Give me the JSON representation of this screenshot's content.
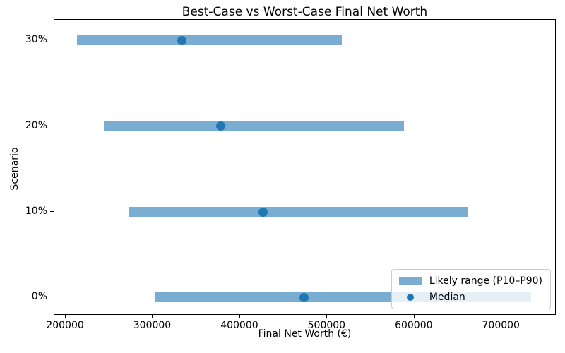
{
  "chart_data": {
    "type": "bar",
    "variant": "horizontal-range-bars-with-median-dots",
    "title": "Best-Case vs Worst-Case Final Net Worth",
    "xlabel": "Final Net Worth (€)",
    "ylabel": "Scenario",
    "categories": [
      "0%",
      "10%",
      "20%",
      "30%"
    ],
    "series": [
      {
        "name": "Likely range (P10–P90)",
        "type": "range-bar",
        "p10": [
          302000,
          272000,
          244000,
          213000
        ],
        "p90": [
          734000,
          662000,
          588000,
          517000
        ]
      },
      {
        "name": "Median",
        "type": "scatter",
        "values": [
          473000,
          426000,
          378000,
          333000
        ]
      }
    ],
    "xticks": [
      200000,
      300000,
      400000,
      500000,
      600000,
      700000
    ],
    "xlim": [
      187000,
      763000
    ],
    "ylim": [
      -0.21,
      3.24
    ],
    "grid": false,
    "legend_position": "lower right",
    "colors": {
      "range_bar": "#79add2",
      "median_dot": "#1f77b4",
      "spine": "#000000",
      "background": "#ffffff"
    }
  }
}
